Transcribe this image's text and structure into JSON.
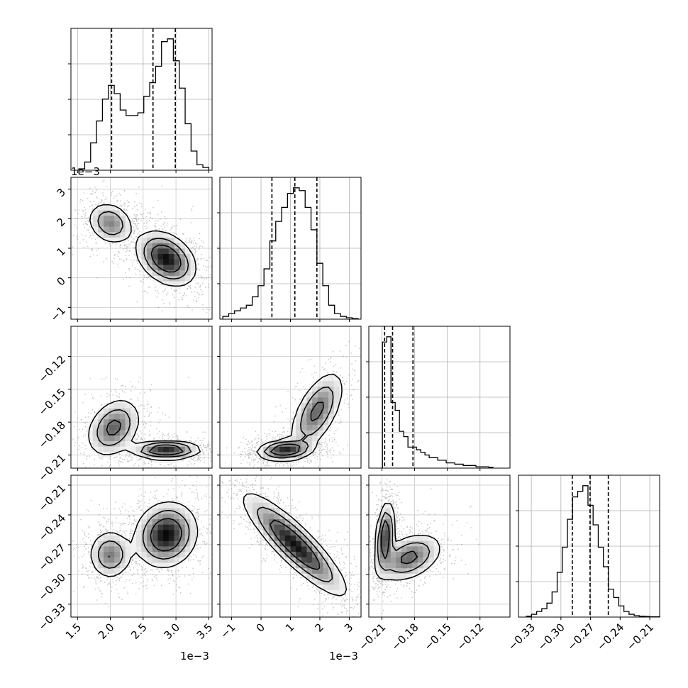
{
  "chart_data": {
    "type": "corner",
    "parameters": [
      {
        "id": "p0",
        "range": [
          0.0014,
          0.00355
        ],
        "ticks": [
          0.0015,
          0.002,
          0.0025,
          0.003,
          0.0035
        ],
        "tick_labels": [
          "1.5",
          "2.0",
          "2.5",
          "3.0",
          "3.5"
        ],
        "offset_text": "1e−3",
        "quantiles": [
          0.00202,
          0.00265,
          0.00299
        ],
        "hist_bins": [
          0.00152,
          0.00161,
          0.0017,
          0.00179,
          0.00188,
          0.00197,
          0.00206,
          0.00215,
          0.00224,
          0.00233,
          0.00242,
          0.00251,
          0.0026,
          0.00269,
          0.00278,
          0.00287,
          0.00296,
          0.00305,
          0.00314,
          0.00323,
          0.00332,
          0.00341
        ],
        "hist_counts": [
          0.5,
          3,
          10,
          18,
          26,
          31,
          28,
          22,
          20,
          20,
          21,
          27,
          32,
          38,
          47,
          48,
          40,
          30,
          17,
          7,
          2,
          1
        ]
      },
      {
        "id": "p1",
        "range": [
          -0.0014,
          0.0034
        ],
        "ticks": [
          -0.001,
          0,
          0.001,
          0.002,
          0.003
        ],
        "tick_labels": [
          "−1",
          "0",
          "1",
          "2",
          "3"
        ],
        "offset_text": "1e−3",
        "quantiles": [
          0.00037,
          0.00115,
          0.0019
        ],
        "hist_bins": [
          -0.0013,
          -0.0011,
          -0.0009,
          -0.0007,
          -0.0005,
          -0.0003,
          -0.0001,
          0.0001,
          0.0003,
          0.0005,
          0.0007,
          0.0009,
          0.0011,
          0.0013,
          0.0015,
          0.0017,
          0.0019,
          0.0021,
          0.0023,
          0.0025,
          0.0027,
          0.0029,
          0.0031
        ],
        "hist_counts": [
          1,
          2,
          3,
          4,
          5,
          8,
          12,
          18,
          28,
          35,
          40,
          45,
          47,
          46,
          40,
          32,
          20,
          12,
          5,
          2,
          1,
          0.5,
          0.2
        ]
      },
      {
        "id": "p2",
        "range": [
          -0.222,
          -0.0925
        ],
        "ticks": [
          -0.21,
          -0.18,
          -0.15,
          -0.12
        ],
        "tick_labels": [
          "−0.21",
          "−0.18",
          "−0.15",
          "−0.12"
        ],
        "offset_text": "",
        "quantiles": [
          -0.2075,
          -0.2002,
          -0.1815
        ],
        "hist_bins": [
          -0.2095,
          -0.2056,
          -0.2017,
          -0.1978,
          -0.1939,
          -0.19,
          -0.1861,
          -0.1822,
          -0.1783,
          -0.1744,
          -0.1705,
          -0.1666,
          -0.1627,
          -0.1588,
          -0.1549,
          -0.151,
          -0.1471,
          -0.1432,
          -0.1393,
          -0.1354,
          -0.1315,
          -0.1276,
          -0.1237,
          -0.1198,
          -0.1159,
          -0.112
        ],
        "hist_counts": [
          48,
          50,
          25,
          22,
          14,
          12,
          8,
          8,
          7,
          6,
          5,
          4,
          4,
          3,
          3,
          2,
          2,
          1.5,
          1.5,
          1,
          1,
          1,
          0.5,
          0.5,
          0.5,
          0.3
        ]
      },
      {
        "id": "p3",
        "range": [
          -0.343,
          -0.2
        ],
        "ticks": [
          -0.33,
          -0.3,
          -0.27,
          -0.24,
          -0.21
        ],
        "tick_labels": [
          "−0.33",
          "−0.30",
          "−0.27",
          "−0.24",
          "−0.21"
        ],
        "offset_text": "",
        "quantiles": [
          -0.2885,
          -0.2705,
          -0.252
        ],
        "hist_bins": [
          -0.335,
          -0.3298,
          -0.3246,
          -0.3194,
          -0.3142,
          -0.309,
          -0.3038,
          -0.2986,
          -0.2934,
          -0.2882,
          -0.283,
          -0.2778,
          -0.2726,
          -0.2674,
          -0.2622,
          -0.257,
          -0.2518,
          -0.2466,
          -0.2414,
          -0.2362,
          -0.231,
          -0.2258,
          -0.2206,
          -0.2154,
          -0.2102,
          -0.205
        ],
        "hist_counts": [
          0.3,
          1,
          2,
          3,
          5,
          9,
          16,
          25,
          35,
          43,
          45,
          47,
          40,
          33,
          25,
          18,
          10,
          7,
          4,
          2,
          1,
          0.5,
          0.3,
          0.2,
          0.1,
          0.1
        ]
      }
    ],
    "pair_densities": [
      {
        "x": "p0",
        "y": "p1",
        "mixture": [
          {
            "mean": [
              0.002,
              0.00185
            ],
            "sd": [
              0.00017,
              0.00035
            ],
            "rho": -0.2,
            "weight": 0.38
          },
          {
            "mean": [
              0.00285,
              0.00065
            ],
            "sd": [
              0.00022,
              0.00045
            ],
            "rho": -0.35,
            "weight": 0.62
          }
        ]
      },
      {
        "x": "p0",
        "y": "p2",
        "mixture": [
          {
            "mean": [
              0.00285,
              -0.2055
            ],
            "sd": [
              0.00025,
              0.004
            ],
            "rho": 0.0,
            "weight": 0.62
          },
          {
            "mean": [
              0.00205,
              -0.185
            ],
            "sd": [
              0.0002,
              0.013
            ],
            "rho": 0.3,
            "weight": 0.38
          }
        ]
      },
      {
        "x": "p1",
        "y": "p2",
        "mixture": [
          {
            "mean": [
              0.0008,
              -0.2055
            ],
            "sd": [
              0.00045,
              0.0045
            ],
            "rho": 0.2,
            "weight": 0.65
          },
          {
            "mean": [
              0.0019,
              -0.17
            ],
            "sd": [
              0.00045,
              0.018
            ],
            "rho": 0.6,
            "weight": 0.35
          }
        ]
      },
      {
        "x": "p0",
        "y": "p3",
        "mixture": [
          {
            "mean": [
              0.00285,
              -0.26
            ],
            "sd": [
              0.00023,
              0.016
            ],
            "rho": 0.1,
            "weight": 0.62
          },
          {
            "mean": [
              0.002,
              -0.28
            ],
            "sd": [
              0.00016,
              0.012
            ],
            "rho": 0.0,
            "weight": 0.38
          }
        ]
      },
      {
        "x": "p1",
        "y": "p3",
        "mixture": [
          {
            "mean": [
              0.00115,
              -0.27
            ],
            "sd": [
              0.00085,
              0.025
            ],
            "rho": -0.88,
            "weight": 1.0
          }
        ]
      },
      {
        "x": "p2",
        "y": "p3",
        "mixture": [
          {
            "mean": [
              -0.207,
              -0.262
            ],
            "sd": [
              0.004,
              0.017
            ],
            "rho": 0.3,
            "weight": 0.6
          },
          {
            "mean": [
              -0.185,
              -0.283
            ],
            "sd": [
              0.015,
              0.012
            ],
            "rho": 0.4,
            "weight": 0.4
          }
        ]
      }
    ],
    "contour_levels_fraction": [
      0.12,
      0.32,
      0.6
    ],
    "grid": true
  }
}
